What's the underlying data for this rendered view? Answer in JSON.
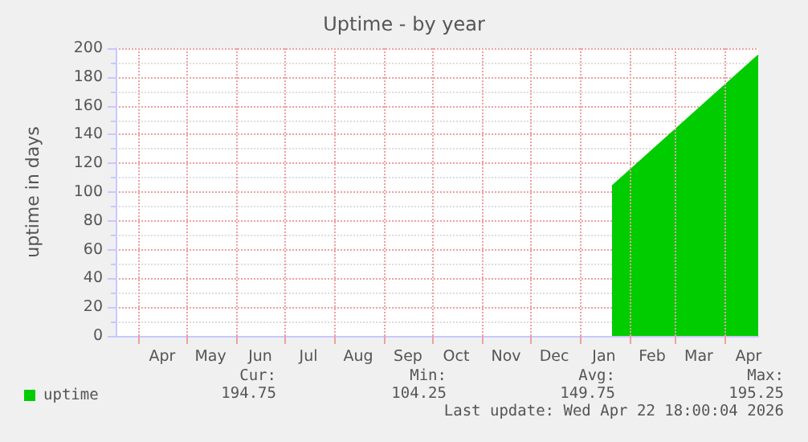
{
  "chart_data": {
    "type": "area",
    "title": "Uptime - by year",
    "ylabel": "uptime in days",
    "x": [
      "2026-01-21",
      "2026-03-01",
      "2026-04-22"
    ],
    "series": [
      {
        "name": "uptime",
        "color": "#00cc00",
        "values": [
          104,
          143,
          195
        ]
      }
    ],
    "xlim": [
      "2025-03-18",
      "2026-04-22"
    ],
    "xticks": [
      {
        "value": "2025-04-01",
        "label": null
      },
      {
        "value": "2025-04-16",
        "label": "Apr"
      },
      {
        "value": "2025-05-01",
        "label": null
      },
      {
        "value": "2025-05-16",
        "label": "May"
      },
      {
        "value": "2025-06-01",
        "label": null
      },
      {
        "value": "2025-06-16",
        "label": "Jun"
      },
      {
        "value": "2025-07-01",
        "label": null
      },
      {
        "value": "2025-07-16",
        "label": "Jul"
      },
      {
        "value": "2025-08-01",
        "label": null
      },
      {
        "value": "2025-08-16",
        "label": "Aug"
      },
      {
        "value": "2025-09-01",
        "label": null
      },
      {
        "value": "2025-09-16",
        "label": "Sep"
      },
      {
        "value": "2025-10-01",
        "label": null
      },
      {
        "value": "2025-10-16",
        "label": "Oct"
      },
      {
        "value": "2025-11-01",
        "label": null
      },
      {
        "value": "2025-11-16",
        "label": "Nov"
      },
      {
        "value": "2025-12-01",
        "label": null
      },
      {
        "value": "2025-12-16",
        "label": "Dec"
      },
      {
        "value": "2026-01-01",
        "label": null
      },
      {
        "value": "2026-01-16",
        "label": "Jan"
      },
      {
        "value": "2026-02-01",
        "label": null
      },
      {
        "value": "2026-02-15",
        "label": "Feb"
      },
      {
        "value": "2026-03-01",
        "label": null
      },
      {
        "value": "2026-03-16",
        "label": "Mar"
      },
      {
        "value": "2026-04-01",
        "label": null
      },
      {
        "value": "2026-04-16",
        "label": "Apr"
      }
    ],
    "ylim": [
      0,
      200
    ],
    "yticks": [
      0,
      20,
      40,
      60,
      80,
      100,
      120,
      140,
      160,
      180,
      200
    ],
    "grid": true,
    "legend": "bottom left",
    "marker": "none",
    "annotations": [
      "Cur:",
      "Min:",
      "Avg:",
      "Max:",
      "194.75",
      "104.25",
      "149.75",
      "195.25",
      "Last update: Wed Apr 22 18:00:04 2026"
    ]
  }
}
